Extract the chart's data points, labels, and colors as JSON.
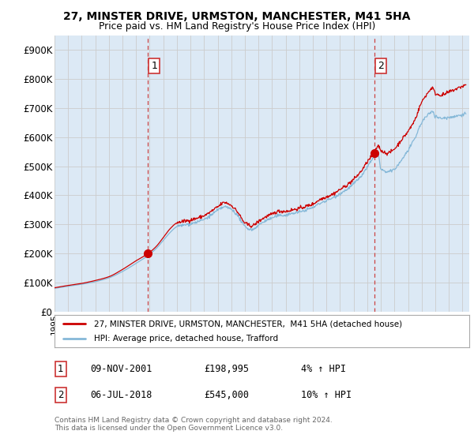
{
  "title1": "27, MINSTER DRIVE, URMSTON, MANCHESTER, M41 5HA",
  "title2": "Price paid vs. HM Land Registry's House Price Index (HPI)",
  "bg_color": "#dce9f5",
  "outer_bg_color": "#ffffff",
  "red_line_color": "#cc0000",
  "blue_line_color": "#85b8d8",
  "grid_color": "#cccccc",
  "annotation_line_color": "#cc4444",
  "point1_date_x": 2001.86,
  "point1_y": 198995,
  "point2_date_x": 2018.51,
  "point2_y": 545000,
  "legend_label1": "27, MINSTER DRIVE, URMSTON, MANCHESTER,  M41 5HA (detached house)",
  "legend_label2": "HPI: Average price, detached house, Trafford",
  "table_row1": [
    "1",
    "09-NOV-2001",
    "£198,995",
    "4% ↑ HPI"
  ],
  "table_row2": [
    "2",
    "06-JUL-2018",
    "£545,000",
    "10% ↑ HPI"
  ],
  "footer": "Contains HM Land Registry data © Crown copyright and database right 2024.\nThis data is licensed under the Open Government Licence v3.0.",
  "xmin": 1995.0,
  "xmax": 2025.5,
  "ymin": 0,
  "ymax": 950000,
  "yticks": [
    0,
    100000,
    200000,
    300000,
    400000,
    500000,
    600000,
    700000,
    800000,
    900000
  ],
  "ytick_labels": [
    "£0",
    "£100K",
    "£200K",
    "£300K",
    "£400K",
    "£500K",
    "£600K",
    "£700K",
    "£800K",
    "£900K"
  ]
}
